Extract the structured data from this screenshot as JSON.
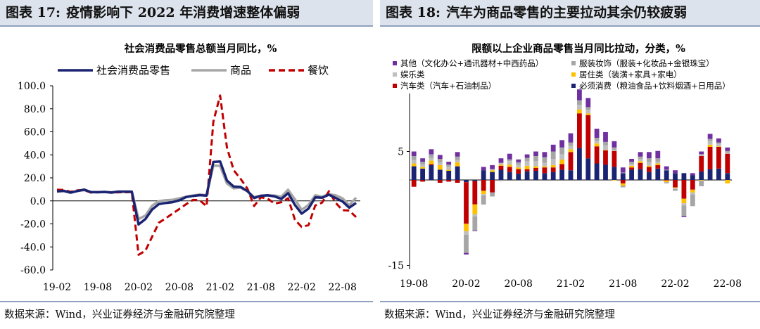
{
  "left": {
    "header_label": "图表 17:",
    "header_title": "疫情影响下 2022 年消费增速整体偏弱",
    "source": "数据来源：Wind，兴业证券经济与金融研究院整理"
  },
  "right": {
    "header_label": "图表 18:",
    "header_title": "汽车为商品零售的主要拉动其余仍较疲弱",
    "source": "数据来源：Wind，兴业证券经济与金融研究院整理"
  },
  "chart_data": [
    {
      "type": "line",
      "title": "社会消费品零售总额当月同比，%",
      "xlabel": "",
      "ylabel": "",
      "ylim": [
        -60,
        100
      ],
      "yticks": [
        "100.0",
        "80.0",
        "60.0",
        "40.0",
        "20.0",
        "0.0",
        "-20.0",
        "-40.0",
        "-60.0"
      ],
      "yticks_values": [
        100,
        80,
        60,
        40,
        20,
        0,
        -20,
        -40,
        -60
      ],
      "x_tick_labels": [
        "19-02",
        "19-08",
        "20-02",
        "20-08",
        "21-02",
        "21-08",
        "22-02",
        "22-08"
      ],
      "x_tick_indices": [
        0,
        6,
        12,
        18,
        24,
        30,
        36,
        42
      ],
      "legend_position": "top",
      "series": [
        {
          "name": "社会消费品零售",
          "color": "#1a2472",
          "style": "solid",
          "values": [
            8.2,
            8.7,
            7.2,
            8.6,
            9.8,
            7.6,
            7.5,
            7.8,
            7.2,
            8.0,
            8.0,
            8.0,
            -20.5,
            -15.8,
            -7.5,
            -2.8,
            -1.8,
            -1.1,
            0.5,
            3.3,
            4.3,
            5.0,
            4.6,
            33.8,
            34.2,
            17.7,
            12.4,
            12.1,
            8.5,
            2.5,
            4.4,
            4.9,
            3.9,
            1.7,
            6.7,
            -3.5,
            -11.1,
            -6.7,
            3.1,
            2.7,
            5.4,
            2.5,
            -0.5,
            -5.9,
            -1.8
          ]
        },
        {
          "name": "商品",
          "color": "#a6a6a6",
          "style": "solid",
          "values": [
            8.3,
            8.6,
            7.1,
            8.6,
            9.3,
            7.7,
            7.6,
            7.8,
            7.5,
            8.1,
            8.1,
            8.0,
            -15.8,
            -12.8,
            -4.2,
            -0.2,
            0.5,
            0.9,
            2.2,
            3.6,
            4.6,
            5.5,
            4.9,
            30.7,
            30.4,
            15.1,
            10.9,
            11.5,
            8.4,
            3.3,
            4.4,
            4.6,
            4.7,
            3.6,
            9.6,
            1.3,
            -7.8,
            -3.5,
            4.9,
            3.6,
            5.8,
            4.8,
            2.2,
            -3.9,
            2.8
          ]
        },
        {
          "name": "餐饮",
          "color": "#c00000",
          "style": "dashed",
          "values": [
            9.7,
            9.5,
            7.9,
            9.1,
            9.4,
            7.2,
            7.6,
            7.6,
            7.4,
            7.4,
            7.5,
            7.6,
            -46.8,
            -43.3,
            -31.1,
            -18.9,
            -15.2,
            -11.0,
            -7.0,
            -2.9,
            0.8,
            0.6,
            -4.7,
            68.9,
            91.6,
            46.4,
            26.6,
            19.2,
            10.8,
            -4.5,
            3.1,
            2.0,
            -2.4,
            -1.2,
            2.2,
            -16.4,
            -22.7,
            -21.1,
            -4.0,
            -1.5,
            8.4,
            -1.7,
            -8.1,
            -8.4,
            -14.1
          ]
        }
      ]
    },
    {
      "type": "bar",
      "stacked": true,
      "title": "限额以上企业商品零售当月同比拉动，分类，%",
      "ylim": [
        -15,
        15
      ],
      "yticks": [
        "5",
        "-15"
      ],
      "yticks_values": [
        5,
        -15
      ],
      "x_tick_labels": [
        "19-08",
        "20-02",
        "20-08",
        "21-02",
        "21-08",
        "22-02",
        "22-08"
      ],
      "x_tick_indices": [
        0,
        6,
        12,
        18,
        24,
        30,
        36
      ],
      "legend_position": "top",
      "series": [
        {
          "name": "其他（文化办公+通讯器材+中西药品）",
          "color": "#7030a0",
          "values": [
            0.8,
            0.6,
            0.9,
            0.7,
            0.5,
            0.8,
            -0.3,
            -0.1,
            0.6,
            0.7,
            0.8,
            1.0,
            0.5,
            0.6,
            0.8,
            0.9,
            1.2,
            1.3,
            1.6,
            1.9,
            1.6,
            1.6,
            1.7,
            1.1,
            0.9,
            0.5,
            0.8,
            1.1,
            1.3,
            0.6,
            0.5,
            -0.2,
            0.4,
            0.5,
            0.9,
            0.7,
            0.6
          ]
        },
        {
          "name": "服装妆饰（服装+化妆品+金银珠宝）",
          "color": "#a6a6a6",
          "values": [
            0.7,
            0.5,
            0.6,
            0.6,
            0.4,
            0.6,
            -3.2,
            -2.5,
            -1.6,
            -0.7,
            -0.2,
            0.3,
            0.4,
            0.6,
            0.9,
            1.0,
            1.3,
            1.2,
            0.6,
            0.8,
            0.5,
            0.5,
            0.6,
            0.4,
            -0.3,
            0.4,
            0.4,
            0.7,
            0.6,
            -0.2,
            -0.3,
            -1.8,
            -2.1,
            -1.0,
            0.4,
            0.3,
            0.3
          ]
        },
        {
          "name": "娱乐类",
          "color": "#bfbfbf",
          "values": [
            0.6,
            0.4,
            0.5,
            0.5,
            0.5,
            0.4,
            -0.6,
            -0.4,
            -0.2,
            0.2,
            0.3,
            0.6,
            0.5,
            0.8,
            0.9,
            0.6,
            1.1,
            0.9,
            0.6,
            0.8,
            0.6,
            0.5,
            0.8,
            0.2,
            0.1,
            0.3,
            0.4,
            0.6,
            0.3,
            0.1,
            -0.2,
            -0.4,
            -0.3,
            0.3,
            0.6,
            0.4,
            0.2
          ]
        },
        {
          "name": "居住类（装潢+家具+家电）",
          "color": "#ffc000",
          "values": [
            0.5,
            0.3,
            0.6,
            0.8,
            0.2,
            0.7,
            -1.3,
            -1.7,
            -0.6,
            0.3,
            0.2,
            0.4,
            0.3,
            0.6,
            0.3,
            0.2,
            0.4,
            0.8,
            0.5,
            0.7,
            0.3,
            0.5,
            0.1,
            -0.1,
            -0.4,
            0.3,
            0.3,
            0.2,
            0.3,
            -0.3,
            -0.1,
            -0.8,
            -0.5,
            -0.1,
            0.4,
            0.1,
            -0.6
          ]
        },
        {
          "name": "汽车类（汽车+石油制品）",
          "color": "#c00000",
          "values": [
            -1.2,
            -0.3,
            0.2,
            -0.5,
            -0.3,
            -0.5,
            -7.3,
            -4.1,
            -1.9,
            -2.2,
            0.7,
            0.9,
            0.8,
            0.4,
            0.5,
            1.0,
            0.8,
            1.0,
            3.2,
            6.1,
            7.6,
            3.0,
            2.5,
            2.8,
            -0.6,
            0.4,
            1.1,
            0.9,
            0.6,
            -0.1,
            -1.3,
            -3.3,
            -1.7,
            2.7,
            3.9,
            3.8,
            3.4
          ]
        },
        {
          "name": "必须消费（粮油食品+饮料烟酒+日用品）",
          "color": "#1a2472",
          "values": [
            2.4,
            2.0,
            2.6,
            1.8,
            1.6,
            2.4,
            -0.4,
            -0.2,
            1.7,
            1.4,
            1.8,
            1.4,
            1.1,
            1.5,
            1.6,
            1.2,
            1.4,
            1.8,
            1.7,
            5.6,
            3.8,
            2.9,
            2.7,
            2.3,
            1.2,
            1.8,
            1.9,
            1.4,
            2.0,
            1.7,
            1.2,
            1.2,
            0.8,
            1.5,
            1.9,
            2.0,
            1.2
          ]
        }
      ]
    }
  ]
}
